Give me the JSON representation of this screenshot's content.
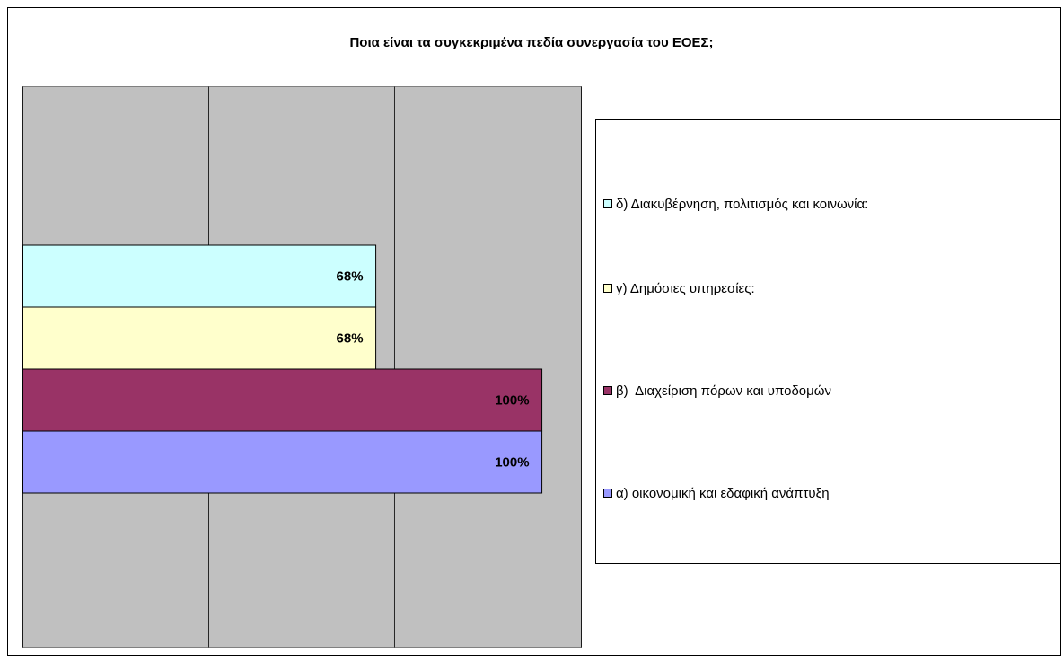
{
  "chart_data": {
    "type": "bar",
    "orientation": "horizontal",
    "title": "Ποια είναι τα συγκεκριμένα πεδία συνεργασία του ΕΟΕΣ;",
    "series": [
      {
        "name": "α) οικονομική και εδαφική ανάπτυξη",
        "color": "#9999ff",
        "values": [
          100
        ],
        "value_labels": [
          "100%"
        ]
      },
      {
        "name": "β)  Διαχείριση πόρων και υποδομών",
        "color": "#993366",
        "values": [
          100
        ],
        "value_labels": [
          "100%"
        ]
      },
      {
        "name": "γ) Δημόσιες υπηρεσίες:",
        "color": "#ffffcc",
        "values": [
          68
        ],
        "value_labels": [
          "68%"
        ]
      },
      {
        "name": "δ) Διακυβέρνηση, πολιτισμός και κοινωνία:",
        "color": "#ccffff",
        "values": [
          68
        ],
        "value_labels": [
          "68%"
        ]
      }
    ],
    "xlim": [
      0,
      107.6
    ],
    "xticks": [
      0,
      35.8,
      71.6,
      107.6
    ],
    "grid": true,
    "legend": "right"
  }
}
